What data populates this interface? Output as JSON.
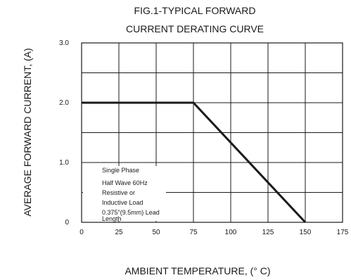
{
  "chart_data": {
    "type": "line",
    "title": [
      "FIG.1-TYPICAL FORWARD",
      "CURRENT DERATING CURVE"
    ],
    "xlabel": "AMBIENT TEMPERATURE, (° C)",
    "ylabel": "AVERAGE FORWARD CURRENT, (A)",
    "xlim": [
      0,
      175
    ],
    "ylim": [
      0,
      3.0
    ],
    "x_ticks": [
      0,
      25,
      50,
      75,
      100,
      125,
      150,
      175
    ],
    "x_tick_labels": [
      "0",
      "25",
      "50",
      "75",
      "100",
      "125",
      "150",
      "175"
    ],
    "y_ticks": [
      0,
      1.0,
      2.0,
      3.0
    ],
    "y_tick_labels": [
      "0",
      "1.0",
      "2.0",
      "3.0"
    ],
    "grid": true,
    "series": [
      {
        "x": [
          0,
          75,
          150
        ],
        "y": [
          2.0,
          2.0,
          0
        ]
      }
    ],
    "annotation": [
      "Single Phase",
      "Half Wave 60Hz",
      "Resistive or",
      "Inductive Load",
      "0.375\"(9.5mm) Lead",
      "Length"
    ]
  }
}
